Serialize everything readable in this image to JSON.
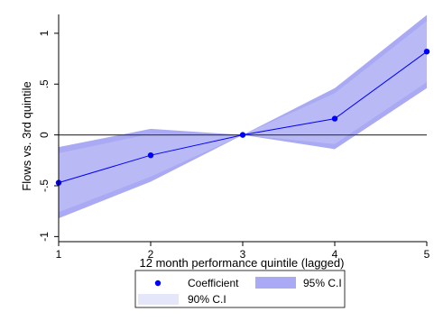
{
  "chart_data": {
    "type": "line",
    "x": [
      1,
      2,
      3,
      4,
      5
    ],
    "series": [
      {
        "name": "Coefficient",
        "values": [
          -0.47,
          -0.2,
          0.0,
          0.16,
          0.82
        ]
      }
    ],
    "ci95": {
      "name": "95% C.I",
      "lower": [
        -0.82,
        -0.46,
        0.0,
        -0.14,
        0.46
      ],
      "upper": [
        -0.12,
        0.06,
        0.0,
        0.46,
        1.18
      ]
    },
    "ci90": {
      "name": "90% C.I",
      "lower": [
        -0.76,
        -0.41,
        0.0,
        -0.09,
        0.52
      ],
      "upper": [
        -0.18,
        0.01,
        0.0,
        0.41,
        1.12
      ]
    },
    "xlabel": "12 month performance quintile (lagged)",
    "ylabel": "Flows vs. 3rd quintile",
    "xlim": [
      1,
      5
    ],
    "ylim": [
      -1.05,
      1.15
    ],
    "xticks": [
      1,
      2,
      3,
      4,
      5
    ],
    "xtick_labels": [
      "1",
      "2",
      "3",
      "4",
      "5"
    ],
    "yticks": [
      -1,
      -0.5,
      0,
      0.5,
      1
    ],
    "ytick_labels": [
      "-1",
      "-.5",
      "0",
      ".5",
      "1"
    ],
    "reference_line_y": 0,
    "grid": false,
    "legend_position": "bottom"
  },
  "colors": {
    "line": "#0000ff",
    "marker": "#0000ff",
    "ci95": "#aaaaf4",
    "ci90": "#e6e6fb",
    "reference": "#444444"
  }
}
